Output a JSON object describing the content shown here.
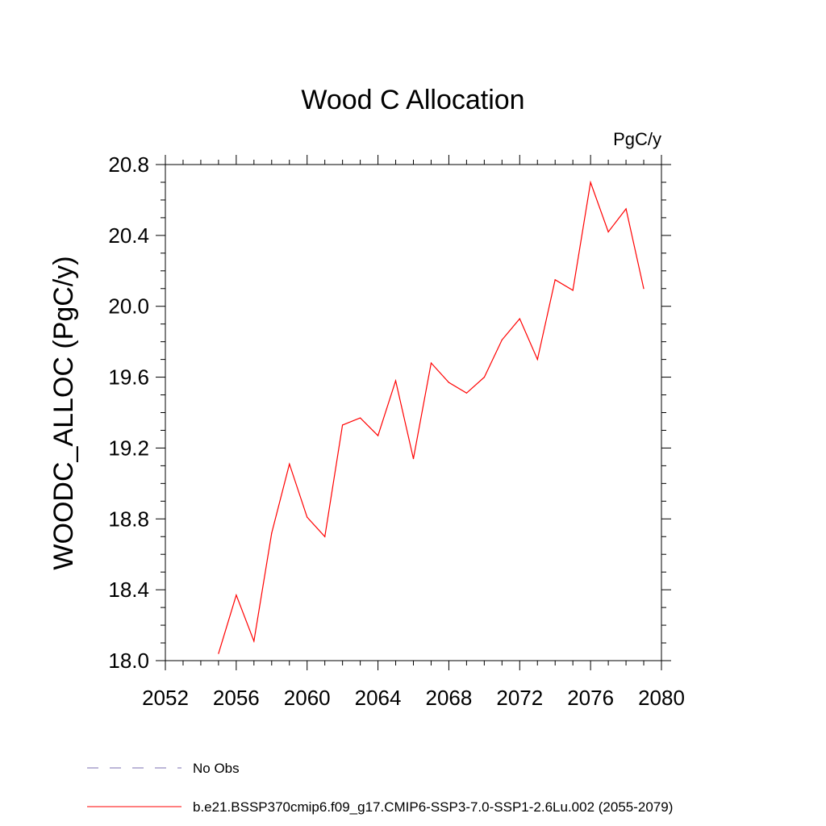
{
  "chart_data": {
    "type": "line",
    "title": "Wood C Allocation",
    "units_label": "PgC/y",
    "ylabel": "WOODC_ALLOC  (PgC/y)",
    "xlabel": "",
    "xlim": [
      2052,
      2080
    ],
    "ylim": [
      18.0,
      20.8
    ],
    "x_ticks": [
      2052,
      2056,
      2060,
      2064,
      2068,
      2072,
      2076,
      2080
    ],
    "x_tick_labels": [
      "2052",
      "2056",
      "2060",
      "2064",
      "2068",
      "2072",
      "2076",
      "2080"
    ],
    "y_ticks": [
      18.0,
      18.4,
      18.8,
      19.2,
      19.6,
      20.0,
      20.4,
      20.8
    ],
    "y_tick_labels": [
      "18.0",
      "18.4",
      "18.8",
      "19.2",
      "19.6",
      "20.0",
      "20.4",
      "20.8"
    ],
    "grid": false,
    "legend_position": "bottom",
    "legend": [
      {
        "label": "No Obs",
        "style": "dashed",
        "color": "#7b6fb0"
      },
      {
        "label": "b.e21.BSSP370cmip6.f09_g17.CMIP6-SSP3-7.0-SSP1-2.6Lu.002 (2055-2079)",
        "style": "solid",
        "color": "#ff0000"
      }
    ],
    "series": [
      {
        "name": "b.e21.BSSP370cmip6.f09_g17.CMIP6-SSP3-7.0-SSP1-2.6Lu.002 (2055-2079)",
        "color": "#ff0000",
        "x": [
          2055,
          2056,
          2057,
          2058,
          2059,
          2060,
          2061,
          2062,
          2063,
          2064,
          2065,
          2066,
          2067,
          2068,
          2069,
          2070,
          2071,
          2072,
          2073,
          2074,
          2075,
          2076,
          2077,
          2078,
          2079
        ],
        "y": [
          18.04,
          18.37,
          18.11,
          18.72,
          19.11,
          18.81,
          18.7,
          19.33,
          19.37,
          19.27,
          19.58,
          19.14,
          19.68,
          19.57,
          19.51,
          19.6,
          19.81,
          19.93,
          19.7,
          20.15,
          20.09,
          20.7,
          20.42,
          20.55,
          20.1
        ]
      }
    ]
  }
}
